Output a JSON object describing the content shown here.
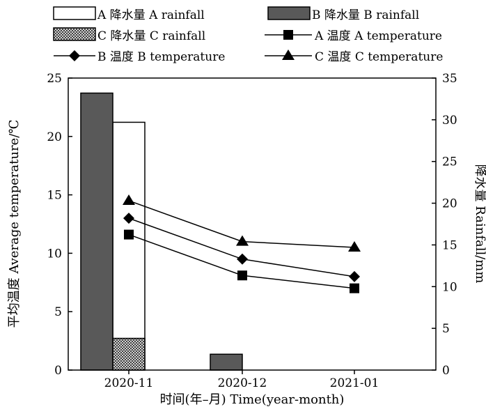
{
  "chart_data": {
    "type": "bar+line",
    "categories": [
      "2020-11",
      "2020-12",
      "2021-01"
    ],
    "xlabel": "时间(年–月) Time(year-month)",
    "ylabel_left": "平均温度 Average temperature/℃",
    "ylabel_right": "降水量 Rainfall/mm",
    "ylim_left": [
      0,
      25
    ],
    "ylim_right": [
      0,
      35
    ],
    "yticks_left": [
      "0",
      "5",
      "10",
      "15",
      "20",
      "25"
    ],
    "yticks_right": [
      "0",
      "5",
      "10",
      "15",
      "20",
      "25",
      "30",
      "35"
    ],
    "grid": false,
    "legend_placement": "top",
    "bar_series": [
      {
        "name": "A 降水量 A rainfall",
        "values": [
          29.7,
          0,
          0
        ],
        "fill": "#ffffff",
        "pattern": "none"
      },
      {
        "name": "B 降水量 B rainfall",
        "values": [
          33.2,
          1.9,
          0
        ],
        "fill": "#595959",
        "pattern": "none"
      },
      {
        "name": "C 降水量 C rainfall",
        "values": [
          3.8,
          0,
          0
        ],
        "fill": "#ffffff",
        "pattern": "crosshatch"
      }
    ],
    "line_series": [
      {
        "name": "A 温度 A temperature",
        "values": [
          11.6,
          8.1,
          7.0
        ],
        "marker": "square"
      },
      {
        "name": "B 温度 B temperature",
        "values": [
          13.0,
          9.5,
          8.0
        ],
        "marker": "diamond"
      },
      {
        "name": "C 温度 C temperature",
        "values": [
          14.5,
          11.0,
          10.5
        ],
        "marker": "triangle"
      }
    ]
  }
}
